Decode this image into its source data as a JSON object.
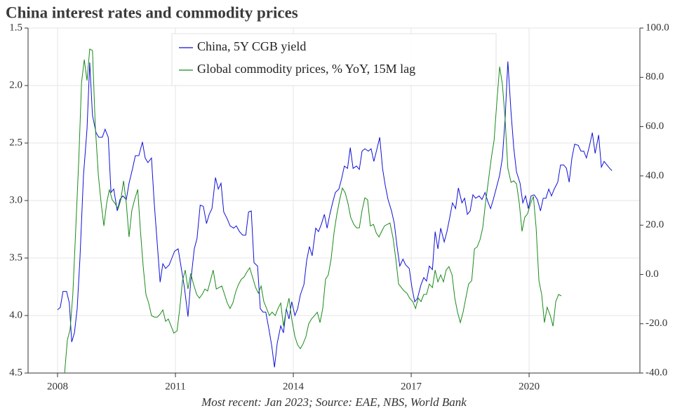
{
  "chart_data": {
    "type": "line",
    "title": "China interest rates and commodity prices",
    "footnote": "Most recent: Jan 2023; Source: EAE, NBS, World Bank",
    "xlim": [
      2007.25,
      2022.82
    ],
    "xticks": [
      2008,
      2011,
      2014,
      2017,
      2020
    ],
    "ylim": [
      4.5,
      1.5
    ],
    "yticks": [
      1.5,
      {
        "value": 2,
        "label": "2.0"
      },
      2.5,
      {
        "value": 3,
        "label": "3.0"
      },
      3.5,
      {
        "value": 4,
        "label": "4.0"
      },
      4.5
    ],
    "y2lim": [
      -40,
      100
    ],
    "y2ticks": [
      {
        "value": -40,
        "label": "-40.0"
      },
      {
        "value": -20,
        "label": "-20.0"
      },
      {
        "value": 0,
        "label": "0.0"
      },
      {
        "value": 20,
        "label": "20.0"
      },
      {
        "value": 40,
        "label": "40.0"
      },
      {
        "value": 60,
        "label": "60.0"
      },
      {
        "value": 80,
        "label": "80.0"
      },
      {
        "value": 100,
        "label": "100.0"
      }
    ],
    "grid": true,
    "legend": "upper center",
    "series": [
      {
        "name": "China, 5Y CGB yield",
        "color": "#1010d8",
        "axis": "y",
        "x": [
          2008.0,
          2008.07,
          2008.14,
          2008.23,
          2008.3,
          2008.36,
          2008.43,
          2008.5,
          2008.57,
          2008.66,
          2008.75,
          2008.82,
          2008.89,
          2008.98,
          2009.05,
          2009.14,
          2009.21,
          2009.29,
          2009.36,
          2009.43,
          2009.52,
          2009.59,
          2009.66,
          2009.75,
          2009.82,
          2009.91,
          2009.98,
          2010.07,
          2010.16,
          2010.23,
          2010.3,
          2010.39,
          2010.46,
          2010.61,
          2010.68,
          2010.75,
          2010.84,
          2010.91,
          2010.98,
          2011.07,
          2011.14,
          2011.23,
          2011.32,
          2011.39,
          2011.48,
          2011.55,
          2011.63,
          2011.71,
          2011.79,
          2011.86,
          2011.93,
          2012.02,
          2012.09,
          2012.16,
          2012.23,
          2012.32,
          2012.39,
          2012.48,
          2012.55,
          2012.63,
          2012.71,
          2012.79,
          2012.86,
          2012.93,
          2013.0,
          2013.09,
          2013.16,
          2013.23,
          2013.3,
          2013.38,
          2013.45,
          2013.52,
          2013.59,
          2013.68,
          2013.75,
          2013.82,
          2013.89,
          2013.96,
          2014.04,
          2014.11,
          2014.18,
          2014.27,
          2014.34,
          2014.41,
          2014.48,
          2014.57,
          2014.64,
          2014.71,
          2014.79,
          2014.86,
          2014.93,
          2015.0,
          2015.07,
          2015.16,
          2015.23,
          2015.3,
          2015.38,
          2015.45,
          2015.52,
          2015.61,
          2015.68,
          2015.75,
          2015.82,
          2015.91,
          2015.98,
          2016.05,
          2016.13,
          2016.2,
          2016.27,
          2016.34,
          2016.41,
          2016.5,
          2016.57,
          2016.64,
          2016.71,
          2016.79,
          2016.86,
          2016.95,
          2017.02,
          2017.09,
          2017.16,
          2017.25,
          2017.32,
          2017.39,
          2017.46,
          2017.54,
          2017.61,
          2017.68,
          2017.75,
          2017.84,
          2017.91,
          2017.98,
          2018.05,
          2018.13,
          2018.2,
          2018.29,
          2018.36,
          2018.43,
          2018.5,
          2018.57,
          2018.64,
          2018.73,
          2018.8,
          2018.88,
          2018.95,
          2019.02,
          2019.09,
          2019.16,
          2019.25,
          2019.32,
          2019.39,
          2019.46,
          2019.54,
          2019.61,
          2019.68,
          2019.77,
          2019.84,
          2019.91,
          2019.98,
          2020.05,
          2020.13,
          2020.21,
          2020.29,
          2020.36,
          2020.43,
          2020.5,
          2020.57,
          2020.64,
          2020.73,
          2020.8,
          2020.88,
          2020.95,
          2021.02,
          2021.09,
          2021.16,
          2021.25,
          2021.32,
          2021.39,
          2021.46,
          2021.54,
          2021.61,
          2021.68,
          2021.77,
          2021.84,
          2021.91,
          2021.98,
          2022.05,
          2022.11
        ],
        "values": [
          3.95,
          3.93,
          3.79,
          3.79,
          3.89,
          4.23,
          4.15,
          3.94,
          3.51,
          2.78,
          2.38,
          1.8,
          2.26,
          2.41,
          2.45,
          2.45,
          2.38,
          2.45,
          2.93,
          2.9,
          3.09,
          2.99,
          2.96,
          2.99,
          2.85,
          2.72,
          2.61,
          2.61,
          2.49,
          2.63,
          2.67,
          2.63,
          3.02,
          3.71,
          3.55,
          3.59,
          3.56,
          3.5,
          3.44,
          3.42,
          3.57,
          3.76,
          4.01,
          3.7,
          3.42,
          3.33,
          3.04,
          3.05,
          3.2,
          3.12,
          3.07,
          2.8,
          2.9,
          2.85,
          3.1,
          3.16,
          3.22,
          3.24,
          3.22,
          3.27,
          3.3,
          3.3,
          3.1,
          3.09,
          3.54,
          3.57,
          3.94,
          3.97,
          3.97,
          4.12,
          4.26,
          4.45,
          4.24,
          4.09,
          4.15,
          3.94,
          4.03,
          3.88,
          4.0,
          3.94,
          3.82,
          3.73,
          3.52,
          3.4,
          3.48,
          3.24,
          3.27,
          3.21,
          3.12,
          3.24,
          3.12,
          3.02,
          2.93,
          2.9,
          2.81,
          2.7,
          2.72,
          2.54,
          2.72,
          2.7,
          2.73,
          2.57,
          2.55,
          2.57,
          2.55,
          2.66,
          2.55,
          2.45,
          2.72,
          2.87,
          2.99,
          3.09,
          3.2,
          3.4,
          3.57,
          3.51,
          3.56,
          3.59,
          3.76,
          3.88,
          3.85,
          3.73,
          3.67,
          3.7,
          3.57,
          3.6,
          3.27,
          3.42,
          3.24,
          3.36,
          3.27,
          3.15,
          3.02,
          3.07,
          2.89,
          3.02,
          2.98,
          3.12,
          3.09,
          2.95,
          2.98,
          2.96,
          2.99,
          2.93,
          3.01,
          3.07,
          2.99,
          2.9,
          2.78,
          2.63,
          2.29,
          1.79,
          2.23,
          2.54,
          2.75,
          2.85,
          3.02,
          2.96,
          3.07,
          2.96,
          2.95,
          2.99,
          3.09,
          2.98,
          2.98,
          2.9,
          2.96,
          2.9,
          2.84,
          2.69,
          2.69,
          2.72,
          2.84,
          2.63,
          2.51,
          2.52,
          2.57,
          2.57,
          2.63,
          2.52,
          2.41,
          2.59,
          2.43,
          2.71,
          2.66,
          2.69,
          2.72,
          2.74
        ]
      },
      {
        "name": "Global commodity prices, % YoY, 15M lag",
        "color": "#1a8a1a",
        "axis": "y2",
        "x": [
          2008.18,
          2008.25,
          2008.32,
          2008.39,
          2008.46,
          2008.54,
          2008.61,
          2008.68,
          2008.75,
          2008.82,
          2008.89,
          2008.96,
          2009.04,
          2009.11,
          2009.18,
          2009.25,
          2009.32,
          2009.39,
          2009.46,
          2009.54,
          2009.61,
          2009.68,
          2009.75,
          2009.82,
          2009.89,
          2009.96,
          2010.04,
          2010.11,
          2010.18,
          2010.25,
          2010.32,
          2010.39,
          2010.46,
          2010.54,
          2010.61,
          2010.68,
          2010.75,
          2010.82,
          2010.89,
          2010.96,
          2011.04,
          2011.11,
          2011.18,
          2011.25,
          2011.32,
          2011.39,
          2011.46,
          2011.54,
          2011.61,
          2011.68,
          2011.75,
          2011.82,
          2011.89,
          2011.96,
          2012.04,
          2012.11,
          2012.18,
          2012.25,
          2012.32,
          2012.39,
          2012.46,
          2012.54,
          2012.61,
          2012.68,
          2012.75,
          2012.82,
          2012.89,
          2012.96,
          2013.04,
          2013.11,
          2013.18,
          2013.25,
          2013.32,
          2013.39,
          2013.46,
          2013.54,
          2013.61,
          2013.68,
          2013.75,
          2013.82,
          2013.89,
          2013.96,
          2014.04,
          2014.11,
          2014.18,
          2014.25,
          2014.32,
          2014.39,
          2014.46,
          2014.54,
          2014.61,
          2014.68,
          2014.75,
          2014.82,
          2014.89,
          2014.96,
          2015.04,
          2015.11,
          2015.18,
          2015.25,
          2015.32,
          2015.39,
          2015.46,
          2015.54,
          2015.61,
          2015.68,
          2015.75,
          2015.82,
          2015.89,
          2015.96,
          2016.04,
          2016.11,
          2016.18,
          2016.25,
          2016.32,
          2016.39,
          2016.46,
          2016.54,
          2016.61,
          2016.68,
          2016.75,
          2016.82,
          2016.89,
          2016.96,
          2017.04,
          2017.11,
          2017.18,
          2017.25,
          2017.32,
          2017.39,
          2017.46,
          2017.54,
          2017.61,
          2017.68,
          2017.75,
          2017.82,
          2017.89,
          2017.96,
          2018.04,
          2018.11,
          2018.18,
          2018.25,
          2018.32,
          2018.39,
          2018.46,
          2018.54,
          2018.61,
          2018.68,
          2018.75,
          2018.82,
          2018.89,
          2018.96,
          2019.04,
          2019.11,
          2019.18,
          2019.25,
          2019.32,
          2019.39,
          2019.46,
          2019.54,
          2019.61,
          2019.68,
          2019.75,
          2019.82,
          2019.89,
          2019.96,
          2020.04,
          2020.11,
          2020.18,
          2020.25,
          2020.32,
          2020.39,
          2020.46,
          2020.54,
          2020.61,
          2020.68,
          2020.75,
          2020.82
        ],
        "values": [
          -40,
          -26.6,
          -22.4,
          -8.1,
          17.5,
          45.9,
          77.8,
          87.2,
          78.7,
          91.5,
          90.9,
          60.2,
          40.2,
          28.9,
          19.7,
          28.9,
          34.5,
          30.3,
          28.9,
          26.6,
          30.3,
          38.0,
          28.9,
          15.2,
          26.0,
          30.3,
          34.5,
          17.5,
          3.2,
          -8.1,
          -11.6,
          -16.7,
          -17.3,
          -17.3,
          -16.1,
          -14.4,
          -19.0,
          -18.1,
          -21.0,
          -23.8,
          -22.9,
          -13.8,
          -2.5,
          1.8,
          -5.9,
          0.4,
          -3.9,
          -8.1,
          -9.6,
          -8.1,
          -5.9,
          -6.7,
          -2.5,
          1.8,
          -5.9,
          -5.3,
          -4.7,
          -8.1,
          -11.6,
          -13.8,
          -11.6,
          -6.7,
          -3.9,
          -1.9,
          -1.0,
          1.0,
          2.7,
          -1.0,
          -5.3,
          -7.6,
          -4.7,
          -11.0,
          -13.8,
          -16.7,
          -15.3,
          -16.7,
          -13.8,
          -11.6,
          -21.0,
          -14.4,
          -9.6,
          -18.1,
          -25.2,
          -28.6,
          -30.1,
          -28.1,
          -25.2,
          -20.1,
          -18.1,
          -16.7,
          -15.3,
          -19.5,
          -13.8,
          -1.9,
          -0.2,
          6.1,
          17.5,
          24.6,
          30.3,
          35.1,
          33.1,
          28.9,
          23.2,
          20.3,
          18.9,
          18.9,
          26.0,
          31.1,
          30.3,
          19.7,
          20.3,
          16.9,
          15.2,
          17.5,
          19.7,
          20.3,
          20.9,
          14.6,
          6.1,
          -3.9,
          -5.3,
          -6.7,
          -7.6,
          -9.6,
          -11.0,
          -13.8,
          -9.6,
          -11.0,
          -8.1,
          -8.1,
          -3.9,
          -5.3,
          1.8,
          -3.0,
          -0.2,
          -3.0,
          1.8,
          3.2,
          -0.2,
          -9.6,
          -15.3,
          -19.5,
          -15.3,
          -9.6,
          -3.9,
          -2.5,
          10.4,
          11.2,
          14.1,
          18.9,
          28.9,
          37.4,
          47.4,
          54.5,
          70.1,
          84.3,
          77.2,
          63.0,
          43.1,
          37.4,
          38.0,
          36.8,
          28.9,
          17.5,
          23.2,
          24.6,
          28.9,
          31.7,
          18.9,
          -2.5,
          -8.1,
          -19.5,
          -13.3,
          -16.7,
          -21.0,
          -11.0,
          -8.1,
          -8.7
        ]
      }
    ]
  }
}
